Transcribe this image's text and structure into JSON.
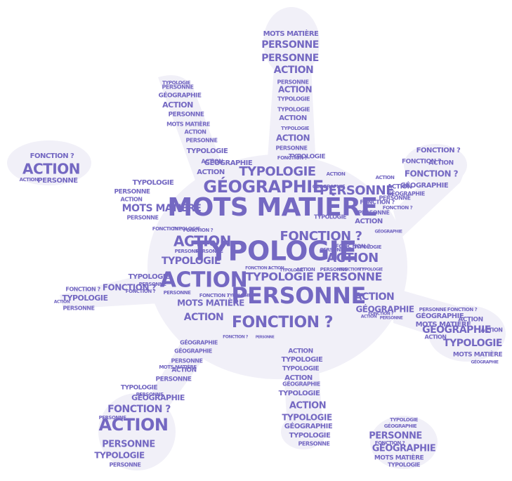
{
  "palette": {
    "text": "#7468c2",
    "shape": "#f1f0f8",
    "background": "#ffffff"
  },
  "words": {
    "mots_matiere": "MOTS MATIÈRE",
    "typologie": "TYPOLOGIE",
    "action": "ACTION",
    "personne": "PERSONNE",
    "fonction": "FONCTION ?",
    "geographie": "GÉOGRAPHIE"
  }
}
